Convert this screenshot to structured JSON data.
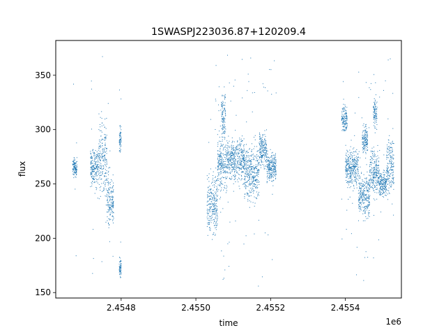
{
  "chart_data": {
    "type": "scatter",
    "title": "1SWASPJ223036.87+120209.4",
    "xlabel": "time",
    "ylabel": "flux",
    "x_offset_label": "1e6",
    "xlim": [
      2454625,
      2455550
    ],
    "ylim": [
      145,
      382
    ],
    "x_ticks": [
      2454800,
      2455000,
      2455200,
      2455400
    ],
    "x_tick_labels": [
      "2.4548",
      "2.4550",
      "2.4552",
      "2.4554"
    ],
    "y_ticks": [
      150,
      200,
      250,
      300,
      350
    ],
    "y_tick_labels": [
      "150",
      "200",
      "250",
      "300",
      "350"
    ],
    "grid": false,
    "marker_color": "#1f77b4",
    "observing_seasons": [
      {
        "x_range": [
          2454670,
          2454682
        ],
        "flux_center": 265,
        "flux_spread": 4
      },
      {
        "x_range": [
          2454718,
          2454740
        ],
        "flux_center": 265,
        "flux_spread": 8
      },
      {
        "x_range": [
          2454740,
          2454762
        ],
        "flux_center": 272,
        "flux_spread": 18
      },
      {
        "x_range": [
          2454762,
          2454780
        ],
        "flux_center": 235,
        "flux_spread": 12
      },
      {
        "x_range": [
          2454795,
          2454800
        ],
        "flux_center": 290,
        "flux_spread": 6
      },
      {
        "x_range": [
          2454795,
          2454800
        ],
        "flux_center": 174,
        "flux_spread": 4
      },
      {
        "x_range": [
          2455030,
          2455058
        ],
        "flux_center": 232,
        "flux_spread": 14
      },
      {
        "x_range": [
          2455058,
          2455085
        ],
        "flux_center": 268,
        "flux_spread": 12
      },
      {
        "x_range": [
          2455068,
          2455080
        ],
        "flux_center": 315,
        "flux_spread": 10
      },
      {
        "x_range": [
          2455085,
          2455130
        ],
        "flux_center": 272,
        "flux_spread": 10
      },
      {
        "x_range": [
          2455130,
          2455170
        ],
        "flux_center": 260,
        "flux_spread": 12
      },
      {
        "x_range": [
          2455170,
          2455190
        ],
        "flux_center": 282,
        "flux_spread": 8
      },
      {
        "x_range": [
          2455190,
          2455215
        ],
        "flux_center": 265,
        "flux_spread": 6
      },
      {
        "x_range": [
          2455390,
          2455405
        ],
        "flux_center": 310,
        "flux_spread": 6
      },
      {
        "x_range": [
          2455400,
          2455435
        ],
        "flux_center": 265,
        "flux_spread": 8
      },
      {
        "x_range": [
          2455435,
          2455465
        ],
        "flux_center": 240,
        "flux_spread": 10
      },
      {
        "x_range": [
          2455445,
          2455460
        ],
        "flux_center": 292,
        "flux_spread": 6
      },
      {
        "x_range": [
          2455465,
          2455490
        ],
        "flux_center": 260,
        "flux_spread": 10
      },
      {
        "x_range": [
          2455475,
          2455485
        ],
        "flux_center": 315,
        "flux_spread": 6
      },
      {
        "x_range": [
          2455490,
          2455510
        ],
        "flux_center": 250,
        "flux_spread": 6
      },
      {
        "x_range": [
          2455510,
          2455530
        ],
        "flux_center": 268,
        "flux_spread": 12
      }
    ],
    "outlier_flux_range": [
      155,
      372
    ]
  }
}
